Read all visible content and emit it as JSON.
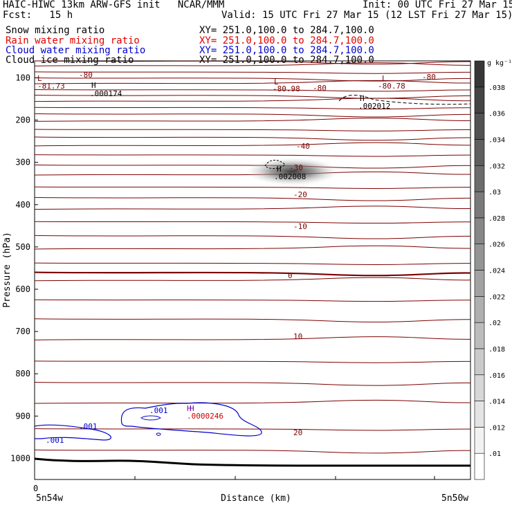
{
  "header": {
    "title": "HAIC-HIWC 13km ARW-GFS init   NCAR/MMM",
    "init": "Init: 00 UTC Fri 27 Mar 15",
    "fcst": "Fcst:   15 h",
    "valid": "Valid: 15 UTC Fri 27 Mar 15 (12 LST Fri 27 Mar 15)"
  },
  "fields": [
    {
      "name": "Snow mixing ratio",
      "xy": "XY= 251.0,100.0 to 284.7,100.0",
      "color": "#000000"
    },
    {
      "name": "Rain water mixing ratio",
      "xy": "XY= 251.0,100.0 to 284.7,100.0",
      "color": "#e00000"
    },
    {
      "name": "Cloud water mixing ratio",
      "xy": "XY= 251.0,100.0 to 284.7,100.0",
      "color": "#0000cc"
    },
    {
      "name": "Cloud ice mixing ratio",
      "xy": "XY= 251.0,100.0 to 284.7,100.0",
      "color": "#000000"
    }
  ],
  "chart_data": {
    "type": "heatmap",
    "ylabel": "Pressure (hPa)",
    "xlabel": "Distance (km)",
    "yticks": [
      "100",
      "200",
      "300",
      "400",
      "500",
      "600",
      "700",
      "800",
      "900",
      "1000"
    ],
    "ylim": [
      1050,
      60
    ],
    "x_start_tick": "0",
    "x_left_label": "5n54w",
    "x_right_label": "5n50w",
    "colorbar": {
      "unit": "g kg⁻¹",
      "levels": [
        ".01",
        ".012",
        ".014",
        ".016",
        ".018",
        ".02",
        ".022",
        ".024",
        ".026",
        ".028",
        ".03",
        ".032",
        ".034",
        ".036",
        ".038"
      ]
    },
    "temperature_labels": [
      "-80",
      "-81.73",
      "-80",
      "-80.98",
      "-80",
      "-80.78",
      "-40",
      "-30",
      "-20",
      "-10",
      "0",
      "10",
      "20"
    ],
    "extrema_labels": [
      {
        "sym": "L",
        "value": "-81.73"
      },
      {
        "sym": "H",
        "value": ".000174"
      },
      {
        "sym": "L",
        "value": "-80.98"
      },
      {
        "sym": "L",
        "value": "-80.78"
      },
      {
        "sym": "H",
        "value": ".002012"
      },
      {
        "sym": "H",
        "value": ".002008"
      }
    ],
    "cloud_water_labels": [
      ".001",
      ".001",
      ".001"
    ],
    "low_level_labels": [
      "H",
      "H",
      ".0000246"
    ],
    "isotherm_levels_hpa": [
      60,
      72,
      86,
      100,
      114,
      128,
      141,
      156,
      170,
      185,
      203,
      222,
      240,
      261,
      282,
      306,
      330,
      358,
      383,
      411,
      440,
      473,
      505,
      538,
      560,
      580,
      625,
      670,
      720,
      770,
      820,
      870,
      930,
      980
    ]
  }
}
